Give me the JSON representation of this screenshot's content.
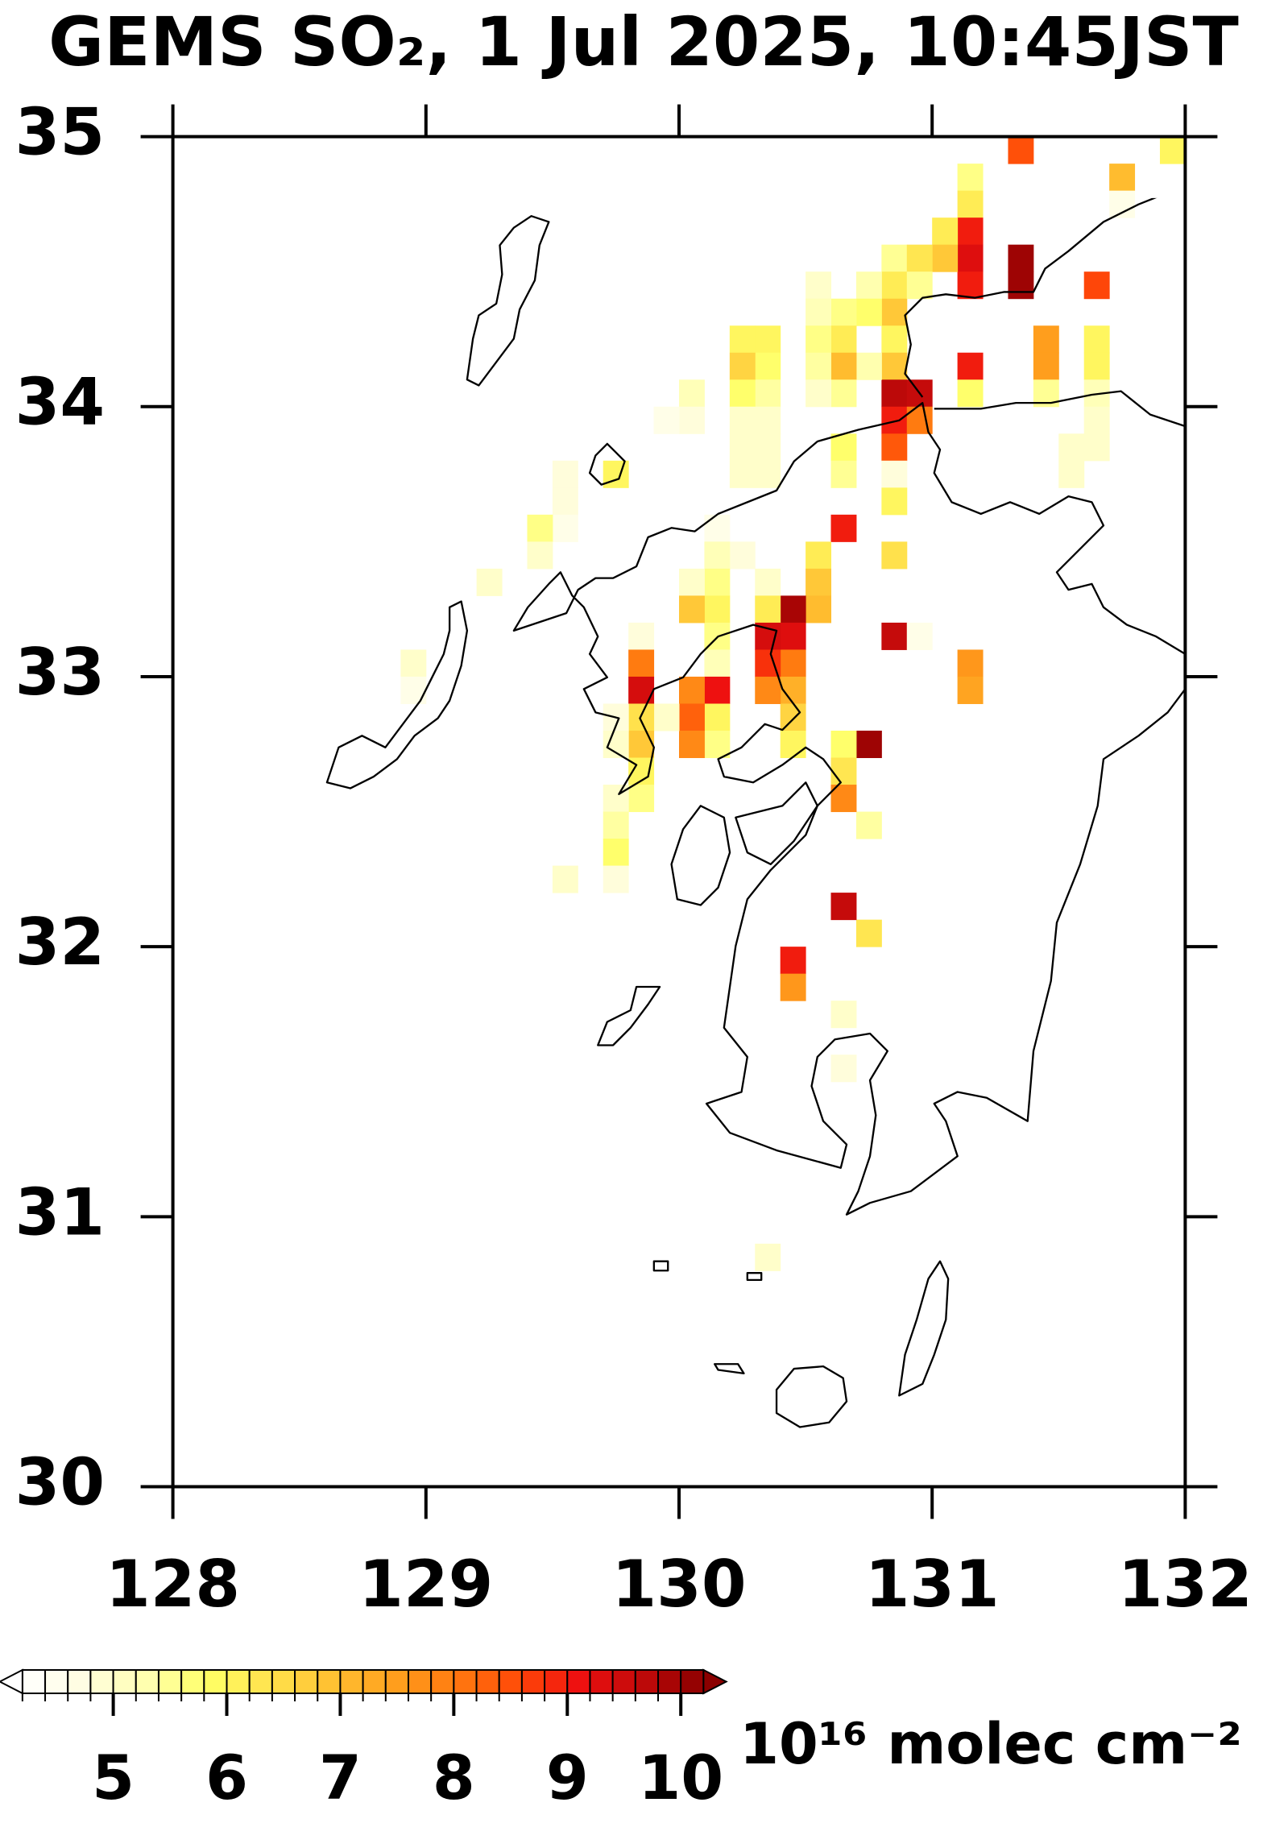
{
  "chart_data": {
    "type": "heatmap",
    "title": "GEMS SO₂, 1 Jul 2025, 10:45JST",
    "xlim": [
      128,
      132
    ],
    "ylim": [
      30,
      35
    ],
    "xticks": [
      128,
      129,
      130,
      131,
      132
    ],
    "yticks": [
      30,
      31,
      32,
      33,
      34,
      35
    ],
    "cell_size": 0.1,
    "colorbar": {
      "label": "10¹⁶ molec cm⁻²",
      "ticks": [
        5,
        6,
        7,
        8,
        9,
        10
      ],
      "clim": [
        4.2,
        10.2
      ],
      "step": 0.2,
      "colors": [
        "#ffffff",
        "#fffde0",
        "#ffffb0",
        "#ffff66",
        "#ffe24d",
        "#ffc032",
        "#ffa01e",
        "#ff7a10",
        "#ff4a08",
        "#ee1010",
        "#c00a0a",
        "#8b0000"
      ]
    },
    "cells": [
      [
        131.3,
        34.9,
        8.5
      ],
      [
        131.7,
        34.8,
        7.0
      ],
      [
        131.9,
        34.9,
        6.0
      ],
      [
        131.7,
        34.7,
        4.6
      ],
      [
        131.1,
        34.8,
        5.6
      ],
      [
        131.1,
        34.7,
        6.2
      ],
      [
        131.1,
        34.6,
        9.0
      ],
      [
        131.1,
        34.5,
        9.3
      ],
      [
        131.1,
        34.4,
        9.0
      ],
      [
        131.0,
        34.6,
        6.2
      ],
      [
        131.0,
        34.5,
        6.8
      ],
      [
        131.3,
        34.5,
        10.0
      ],
      [
        131.3,
        34.4,
        10.0
      ],
      [
        131.6,
        34.4,
        8.6
      ],
      [
        131.1,
        34.1,
        9.0
      ],
      [
        131.1,
        34.0,
        5.8
      ],
      [
        131.4,
        34.2,
        7.5
      ],
      [
        131.4,
        34.1,
        7.5
      ],
      [
        131.4,
        34.0,
        5.5
      ],
      [
        131.6,
        34.2,
        6.0
      ],
      [
        131.6,
        34.1,
        6.0
      ],
      [
        131.6,
        34.0,
        5.2
      ],
      [
        131.6,
        33.9,
        5.0
      ],
      [
        131.6,
        33.8,
        5.0
      ],
      [
        131.5,
        33.8,
        5.0
      ],
      [
        131.5,
        33.7,
        5.0
      ],
      [
        130.8,
        34.5,
        5.5
      ],
      [
        130.8,
        34.4,
        6.2
      ],
      [
        130.8,
        34.3,
        6.8
      ],
      [
        130.8,
        34.2,
        6.0
      ],
      [
        130.8,
        34.1,
        6.8
      ],
      [
        130.8,
        34.0,
        9.7
      ],
      [
        130.8,
        33.9,
        9.0
      ],
      [
        130.8,
        33.8,
        8.4
      ],
      [
        130.8,
        33.7,
        4.8
      ],
      [
        130.8,
        33.6,
        6.0
      ],
      [
        130.8,
        33.4,
        6.4
      ],
      [
        130.8,
        33.1,
        9.6
      ],
      [
        130.9,
        34.5,
        6.3
      ],
      [
        130.9,
        34.4,
        5.5
      ],
      [
        130.9,
        34.0,
        9.6
      ],
      [
        130.9,
        33.9,
        8.0
      ],
      [
        130.9,
        33.1,
        4.6
      ],
      [
        130.7,
        34.4,
        5.3
      ],
      [
        130.7,
        34.3,
        5.8
      ],
      [
        130.7,
        34.1,
        5.3
      ],
      [
        130.7,
        32.7,
        10.0
      ],
      [
        130.7,
        32.4,
        5.4
      ],
      [
        130.7,
        32.0,
        6.3
      ],
      [
        130.6,
        34.3,
        5.6
      ],
      [
        130.6,
        34.2,
        6.2
      ],
      [
        130.6,
        34.1,
        7.0
      ],
      [
        130.6,
        34.0,
        5.5
      ],
      [
        130.6,
        33.8,
        5.8
      ],
      [
        130.6,
        33.7,
        5.5
      ],
      [
        130.6,
        33.5,
        9.0
      ],
      [
        130.6,
        32.7,
        5.8
      ],
      [
        130.6,
        32.6,
        6.3
      ],
      [
        130.6,
        32.5,
        7.8
      ],
      [
        130.6,
        32.1,
        9.6
      ],
      [
        130.6,
        31.7,
        5.0
      ],
      [
        130.6,
        31.5,
        4.8
      ],
      [
        130.5,
        34.4,
        5.0
      ],
      [
        130.5,
        34.3,
        5.2
      ],
      [
        130.5,
        34.2,
        5.6
      ],
      [
        130.5,
        34.1,
        5.4
      ],
      [
        130.5,
        34.0,
        5.0
      ],
      [
        130.5,
        33.4,
        6.2
      ],
      [
        130.5,
        33.3,
        6.8
      ],
      [
        130.5,
        33.2,
        7.0
      ],
      [
        130.4,
        33.2,
        9.9
      ],
      [
        130.4,
        33.1,
        9.3
      ],
      [
        130.4,
        33.0,
        8.0
      ],
      [
        130.4,
        32.9,
        7.2
      ],
      [
        130.4,
        32.8,
        6.6
      ],
      [
        130.4,
        32.7,
        6.0
      ],
      [
        130.4,
        31.9,
        9.0
      ],
      [
        130.4,
        31.8,
        7.6
      ],
      [
        130.3,
        34.2,
        6.0
      ],
      [
        130.3,
        34.1,
        5.8
      ],
      [
        130.3,
        34.0,
        5.4
      ],
      [
        130.3,
        33.9,
        5.0
      ],
      [
        130.3,
        33.8,
        5.0
      ],
      [
        130.3,
        33.7,
        5.0
      ],
      [
        130.3,
        33.3,
        5.0
      ],
      [
        130.3,
        33.2,
        6.2
      ],
      [
        130.3,
        33.1,
        9.4
      ],
      [
        130.3,
        33.0,
        8.8
      ],
      [
        130.3,
        32.9,
        7.8
      ],
      [
        130.3,
        30.8,
        5.0
      ],
      [
        130.2,
        34.2,
        6.0
      ],
      [
        130.2,
        34.1,
        6.6
      ],
      [
        130.2,
        34.0,
        5.8
      ],
      [
        130.2,
        33.9,
        5.0
      ],
      [
        130.2,
        33.8,
        5.0
      ],
      [
        130.2,
        33.7,
        5.0
      ],
      [
        130.2,
        33.4,
        4.8
      ],
      [
        130.1,
        33.5,
        4.6
      ],
      [
        130.1,
        33.4,
        5.2
      ],
      [
        130.1,
        33.3,
        5.6
      ],
      [
        130.1,
        33.2,
        6.0
      ],
      [
        130.1,
        33.1,
        5.6
      ],
      [
        130.1,
        33.0,
        5.2
      ],
      [
        130.1,
        32.9,
        9.1
      ],
      [
        130.1,
        32.8,
        6.0
      ],
      [
        130.1,
        32.7,
        5.6
      ],
      [
        130.0,
        34.0,
        5.2
      ],
      [
        130.0,
        33.9,
        4.8
      ],
      [
        130.0,
        33.3,
        5.0
      ],
      [
        130.0,
        33.2,
        6.8
      ],
      [
        130.0,
        32.9,
        7.8
      ],
      [
        130.0,
        32.8,
        8.3
      ],
      [
        130.0,
        32.7,
        7.8
      ],
      [
        129.9,
        33.9,
        4.6
      ],
      [
        129.9,
        32.8,
        5.0
      ],
      [
        129.8,
        33.1,
        4.8
      ],
      [
        129.8,
        33.0,
        8.0
      ],
      [
        129.8,
        32.9,
        9.4
      ],
      [
        129.8,
        32.8,
        6.4
      ],
      [
        129.8,
        32.7,
        6.8
      ],
      [
        129.8,
        32.6,
        6.0
      ],
      [
        129.8,
        32.5,
        5.6
      ],
      [
        129.7,
        32.8,
        4.8
      ],
      [
        129.7,
        32.7,
        5.0
      ],
      [
        129.7,
        32.5,
        5.0
      ],
      [
        129.7,
        32.4,
        5.4
      ],
      [
        129.7,
        32.3,
        5.8
      ],
      [
        129.7,
        32.2,
        4.8
      ],
      [
        129.7,
        33.7,
        6.0
      ],
      [
        129.5,
        32.2,
        5.0
      ],
      [
        129.5,
        33.7,
        4.8
      ],
      [
        129.5,
        33.6,
        4.8
      ],
      [
        129.5,
        33.5,
        4.6
      ],
      [
        129.4,
        33.5,
        5.6
      ],
      [
        129.4,
        33.4,
        5.0
      ],
      [
        129.2,
        33.3,
        5.0
      ],
      [
        128.9,
        33.0,
        5.0
      ],
      [
        128.9,
        32.9,
        4.6
      ],
      [
        131.1,
        33.0,
        7.6
      ],
      [
        131.1,
        32.9,
        7.4
      ]
    ]
  }
}
